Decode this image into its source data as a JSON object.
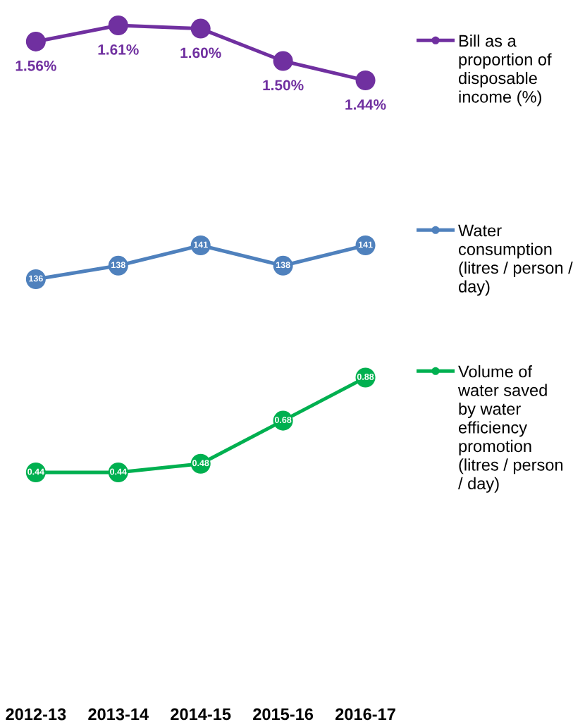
{
  "chart_data": [
    {
      "type": "line",
      "categories": [
        "2012-13",
        "2013-14",
        "2014-15",
        "2015-16",
        "2016-17"
      ],
      "series": [
        {
          "name": "Bill as a\nproportion of\ndisposable\nincome (%)",
          "color": "#7030a0",
          "values": [
            1.56,
            1.61,
            1.6,
            1.5,
            1.44
          ],
          "value_labels": [
            "1.56%",
            "1.61%",
            "1.60%",
            "1.50%",
            "1.44%"
          ]
        }
      ],
      "legend": "right",
      "marker": "circle",
      "line_style": "solid",
      "tick_labels": false
    },
    {
      "type": "line",
      "categories": [
        "2012-13",
        "2013-14",
        "2014-15",
        "2015-16",
        "2016-17"
      ],
      "series": [
        {
          "name": "Water\nconsumption\n(litres / person /\nday)",
          "color": "#4f81bd",
          "values": [
            136,
            138,
            141,
            138,
            141
          ]
        }
      ],
      "data_labels": true,
      "legend": "right",
      "marker": "circle",
      "line_style": "solid",
      "tick_labels": false
    },
    {
      "type": "line",
      "categories": [
        "2012-13",
        "2013-14",
        "2014-15",
        "2015-16",
        "2016-17"
      ],
      "series": [
        {
          "name": "Volume of\nwater saved\nby water\nefficiency\npromotion\n(litres / person\n/ day)",
          "color": "#00b050",
          "values": [
            0.44,
            0.44,
            0.48,
            0.68,
            0.88
          ]
        }
      ],
      "data_labels": true,
      "legend": "right",
      "marker": "circle",
      "line_style": "solid",
      "tick_labels": "x"
    }
  ]
}
